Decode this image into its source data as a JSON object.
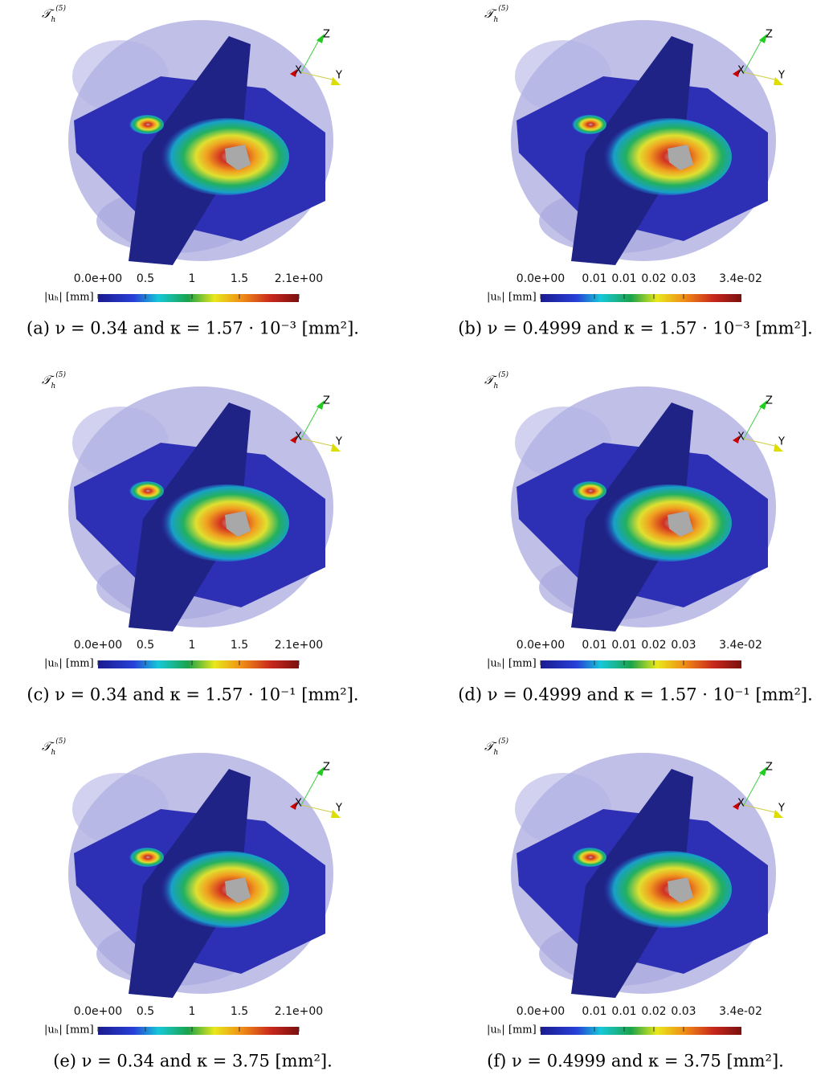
{
  "panels": [
    {
      "mesh_label": {
        "base": "𝒯",
        "sub": "h",
        "sup": "(5)"
      },
      "axes": {
        "z": "Z",
        "x": "X",
        "y": "Y"
      },
      "colorbar": {
        "label": "|uₕ| [mm]",
        "ticks": [
          "0.0e+00",
          "0.5",
          "1",
          "1.5",
          "2.1e+00"
        ]
      },
      "caption": "(a) ν = 0.34 and κ = 1.57 · 10⁻³ [mm²]."
    },
    {
      "mesh_label": {
        "base": "𝒯",
        "sub": "h",
        "sup": "(5)"
      },
      "axes": {
        "z": "Z",
        "x": "X",
        "y": "Y"
      },
      "colorbar": {
        "label": "|uₕ| [mm]",
        "ticks": [
          "0.0e+00",
          "0.01",
          "0.01",
          "0.02",
          "0.03",
          "3.4e-02"
        ]
      },
      "caption": "(b) ν = 0.4999 and κ = 1.57 · 10⁻³ [mm²]."
    },
    {
      "mesh_label": {
        "base": "𝒯",
        "sub": "h",
        "sup": "(5)"
      },
      "axes": {
        "z": "Z",
        "x": "X",
        "y": "Y"
      },
      "colorbar": {
        "label": "|uₕ| [mm]",
        "ticks": [
          "0.0e+00",
          "0.5",
          "1",
          "1.5",
          "2.1e+00"
        ]
      },
      "caption": "(c) ν = 0.34 and κ = 1.57 · 10⁻¹ [mm²]."
    },
    {
      "mesh_label": {
        "base": "𝒯",
        "sub": "h",
        "sup": "(5)"
      },
      "axes": {
        "z": "Z",
        "x": "X",
        "y": "Y"
      },
      "colorbar": {
        "label": "|uₕ| [mm]",
        "ticks": [
          "0.0e+00",
          "0.01",
          "0.01",
          "0.02",
          "0.03",
          "3.4e-02"
        ]
      },
      "caption": "(d) ν = 0.4999 and κ = 1.57 · 10⁻¹ [mm²]."
    },
    {
      "mesh_label": {
        "base": "𝒯",
        "sub": "h",
        "sup": "(5)"
      },
      "axes": {
        "z": "Z",
        "x": "X",
        "y": "Y"
      },
      "colorbar": {
        "label": "|uₕ| [mm]",
        "ticks": [
          "0.0e+00",
          "0.5",
          "1",
          "1.5",
          "2.1e+00"
        ]
      },
      "caption": "(e) ν = 0.34 and κ = 3.75 [mm²]."
    },
    {
      "mesh_label": {
        "base": "𝒯",
        "sub": "h",
        "sup": "(5)"
      },
      "axes": {
        "z": "Z",
        "x": "X",
        "y": "Y"
      },
      "colorbar": {
        "label": "|uₕ| [mm]",
        "ticks": [
          "0.0e+00",
          "0.01",
          "0.01",
          "0.02",
          "0.03",
          "3.4e-02"
        ]
      },
      "caption": "(f) ν = 0.4999 and κ = 3.75 [mm²]."
    }
  ]
}
